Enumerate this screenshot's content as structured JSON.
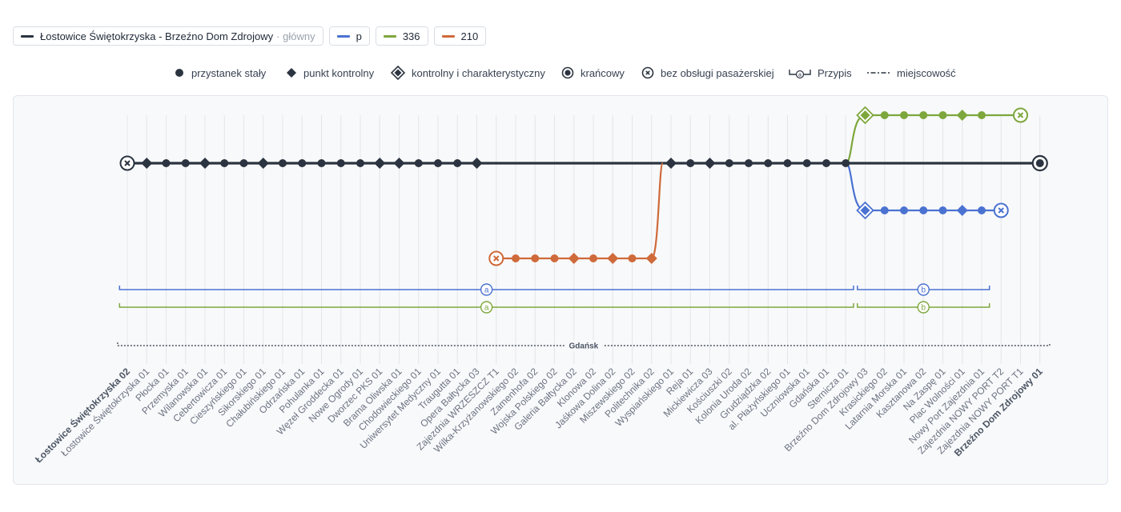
{
  "tabs": [
    {
      "label": "Łostowice Świętokrzyska - Brzeźno Dom Zdrojowy",
      "sub": "· główny",
      "color": "#2b3440"
    },
    {
      "label": "p",
      "color": "#4a72d1"
    },
    {
      "label": "336",
      "color": "#7da73c"
    },
    {
      "label": "210",
      "color": "#cf6a3a"
    }
  ],
  "legend": [
    {
      "icon": "regular-stop-icon",
      "label": "przystanek stały"
    },
    {
      "icon": "checkpoint-icon",
      "label": "punkt kontrolny"
    },
    {
      "icon": "checkpoint-characteristic-icon",
      "label": "kontrolny i charakterystyczny"
    },
    {
      "icon": "terminal-icon",
      "label": "krańcowy"
    },
    {
      "icon": "no-passenger-service-icon",
      "label": "bez obsługi pasażerskiej"
    },
    {
      "icon": "footnote-icon",
      "label": "Przypis"
    },
    {
      "icon": "locality-icon",
      "label": "miejscowość"
    }
  ],
  "colors": {
    "main": "#2b3440",
    "p": "#4a72d1",
    "green": "#7da73c",
    "orange": "#cf6a3a"
  },
  "stops": [
    {
      "label": "Łostowice Świętokrzyska 02",
      "bold": true
    },
    {
      "label": "Łostowice Świętokrzyska 01"
    },
    {
      "label": "Płocka 01"
    },
    {
      "label": "Przemyska 01"
    },
    {
      "label": "Wilanowska 01"
    },
    {
      "label": "Cebertowicza 01"
    },
    {
      "label": "Cieszyńskiego 01"
    },
    {
      "label": "Sikorskiego 01"
    },
    {
      "label": "Chałubińskiego 01"
    },
    {
      "label": "Odrzańska 01"
    },
    {
      "label": "Pohulanka 01"
    },
    {
      "label": "Węzeł Groddecka 01"
    },
    {
      "label": "Nowe Ogrody 01"
    },
    {
      "label": "Dworzec PKS 01"
    },
    {
      "label": "Brama Oliwska 01"
    },
    {
      "label": "Chodowieckiego 01"
    },
    {
      "label": "Uniwersytet Medyczny 01"
    },
    {
      "label": "Traugutta 01"
    },
    {
      "label": "Opera Bałtycka 03"
    },
    {
      "label": "Zajezdnia WRZESZCZ T1"
    },
    {
      "label": "Wilka-Krzyżanowskiego 02"
    },
    {
      "label": "Zamenhofa 02"
    },
    {
      "label": "Wojska Polskiego 02"
    },
    {
      "label": "Galeria Bałtycka 02"
    },
    {
      "label": "Klonowa 02"
    },
    {
      "label": "Jaśkowa Dolina 02"
    },
    {
      "label": "Miszewskiego 02"
    },
    {
      "label": "Politechnika 02"
    },
    {
      "label": "Wyspiańskiego 01"
    },
    {
      "label": "Reja 01"
    },
    {
      "label": "Mickiewicza 03"
    },
    {
      "label": "Kościuszki 02"
    },
    {
      "label": "Kolonia Uroda 02"
    },
    {
      "label": "Grudziądzka 02"
    },
    {
      "label": "al. Płażyńskiego 01"
    },
    {
      "label": "Uczniowska 01"
    },
    {
      "label": "Gdańska 01"
    },
    {
      "label": "Sternicza 01"
    },
    {
      "label": "Brzeźno Dom Zdrojowy 03"
    },
    {
      "label": "Krasickiego 02"
    },
    {
      "label": "Latarnia Morska 01"
    },
    {
      "label": "Kasztanowa 02"
    },
    {
      "label": "Na Zaspę 01"
    },
    {
      "label": "Plac Wolności 01"
    },
    {
      "label": "Nowy Port Zajezdnia 01"
    },
    {
      "label": "Zajezdnia NOWY PORT T2"
    },
    {
      "label": "Zajezdnia NOWY PORT T1"
    },
    {
      "label": "Brzeźno Dom Zdrojowy 01",
      "bold": true
    }
  ],
  "main_line": {
    "nodes": [
      {
        "i": 0,
        "type": "nopass"
      },
      {
        "i": 1,
        "type": "diamond"
      },
      {
        "i": 2,
        "type": "circle"
      },
      {
        "i": 3,
        "type": "circle"
      },
      {
        "i": 4,
        "type": "diamond"
      },
      {
        "i": 5,
        "type": "circle"
      },
      {
        "i": 6,
        "type": "circle"
      },
      {
        "i": 7,
        "type": "diamond"
      },
      {
        "i": 8,
        "type": "circle"
      },
      {
        "i": 9,
        "type": "circle"
      },
      {
        "i": 10,
        "type": "circle"
      },
      {
        "i": 11,
        "type": "circle"
      },
      {
        "i": 12,
        "type": "circle"
      },
      {
        "i": 13,
        "type": "diamond"
      },
      {
        "i": 14,
        "type": "diamond"
      },
      {
        "i": 15,
        "type": "circle"
      },
      {
        "i": 16,
        "type": "circle"
      },
      {
        "i": 17,
        "type": "circle"
      },
      {
        "i": 18,
        "type": "diamond"
      },
      {
        "i": 28,
        "type": "diamond"
      },
      {
        "i": 29,
        "type": "circle"
      },
      {
        "i": 30,
        "type": "diamond"
      },
      {
        "i": 31,
        "type": "circle"
      },
      {
        "i": 32,
        "type": "circle"
      },
      {
        "i": 33,
        "type": "circle"
      },
      {
        "i": 34,
        "type": "circle"
      },
      {
        "i": 35,
        "type": "circle"
      },
      {
        "i": 36,
        "type": "circle"
      },
      {
        "i": 37,
        "type": "circle"
      },
      {
        "i": 47,
        "type": "terminal"
      }
    ]
  },
  "variant_210": {
    "nodes": [
      {
        "i": 19,
        "type": "nopass"
      },
      {
        "i": 20,
        "type": "circle"
      },
      {
        "i": 21,
        "type": "circle"
      },
      {
        "i": 22,
        "type": "circle"
      },
      {
        "i": 23,
        "type": "diamond"
      },
      {
        "i": 24,
        "type": "circle"
      },
      {
        "i": 25,
        "type": "diamond"
      },
      {
        "i": 26,
        "type": "circle"
      },
      {
        "i": 27,
        "type": "diamond"
      }
    ]
  },
  "variant_336": {
    "nodes": [
      {
        "i": 38,
        "type": "diamond-char"
      },
      {
        "i": 39,
        "type": "circle"
      },
      {
        "i": 40,
        "type": "circle"
      },
      {
        "i": 41,
        "type": "circle"
      },
      {
        "i": 42,
        "type": "circle"
      },
      {
        "i": 43,
        "type": "diamond"
      },
      {
        "i": 44,
        "type": "circle"
      },
      {
        "i": 46,
        "type": "nopass"
      }
    ]
  },
  "variant_p": {
    "nodes": [
      {
        "i": 38,
        "type": "diamond-char"
      },
      {
        "i": 39,
        "type": "circle"
      },
      {
        "i": 40,
        "type": "circle"
      },
      {
        "i": 41,
        "type": "circle"
      },
      {
        "i": 42,
        "type": "circle"
      },
      {
        "i": 43,
        "type": "diamond"
      },
      {
        "i": 44,
        "type": "circle"
      },
      {
        "i": 45,
        "type": "nopass"
      }
    ]
  },
  "footnotes": [
    {
      "line": "p",
      "color": "#4a72d1",
      "marker": "a",
      "from": -0.4,
      "to": 37.4
    },
    {
      "line": "p",
      "color": "#4a72d1",
      "marker": "b",
      "from": 37.6,
      "to": 44.4
    },
    {
      "line": "336",
      "color": "#7da73c",
      "marker": "a",
      "from": -0.4,
      "to": 37.4
    },
    {
      "line": "336",
      "color": "#7da73c",
      "marker": "b",
      "from": 37.6,
      "to": 44.4
    }
  ],
  "locality": {
    "label": "Gdańsk"
  }
}
